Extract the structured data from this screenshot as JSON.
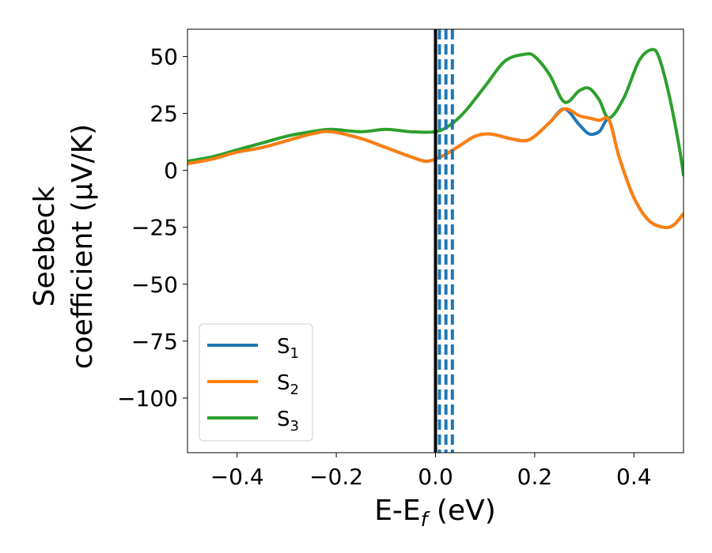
{
  "chart_data": {
    "type": "line",
    "xlabel": "E-E",
    "xlabel_sub": "f",
    "xlabel_unit": " (eV)",
    "ylabel_line1": "Seebeck",
    "ylabel_line2": "coefficient  (μV/K)",
    "xlim": [
      -0.5,
      0.5
    ],
    "ylim": [
      -124,
      62
    ],
    "xticks": [
      -0.4,
      -0.2,
      0.0,
      0.2,
      0.4
    ],
    "xtick_labels": [
      "−0.4",
      "−0.2",
      "0.0",
      "0.2",
      "0.4"
    ],
    "yticks": [
      50,
      25,
      0,
      -25,
      -50,
      -75,
      -100
    ],
    "ytick_labels": [
      "50",
      "25",
      "0",
      "−25",
      "−50",
      "−75",
      "−100"
    ],
    "grid": false,
    "legend_position": "lower-left",
    "vertical_lines": [
      {
        "x": 0.0,
        "style": "solid",
        "color": "#000000"
      },
      {
        "x": 0.008,
        "style": "dashed",
        "color": "#1f77b4"
      },
      {
        "x": 0.021,
        "style": "dashed",
        "color": "#1f77b4"
      },
      {
        "x": 0.034,
        "style": "dashed",
        "color": "#1f77b4"
      }
    ],
    "series": [
      {
        "name": "S",
        "name_sub": "1",
        "color": "#1f77b4",
        "x": [
          -0.5,
          -0.45,
          -0.4,
          -0.35,
          -0.3,
          -0.25,
          -0.21,
          -0.15,
          -0.1,
          -0.05,
          -0.02,
          0.0,
          0.02,
          0.05,
          0.08,
          0.11,
          0.15,
          0.18,
          0.2,
          0.23,
          0.26,
          0.29,
          0.31,
          0.33,
          0.35,
          0.37,
          0.4,
          0.43,
          0.46,
          0.48,
          0.5
        ],
        "values": [
          3,
          5,
          8,
          10,
          13,
          16,
          17,
          14,
          10,
          6,
          4,
          5,
          7,
          11,
          15,
          16,
          14,
          13,
          15,
          21,
          27,
          20,
          16,
          17,
          22,
          6,
          -12,
          -22,
          -25,
          -24,
          -19
        ]
      },
      {
        "name": "S",
        "name_sub": "2",
        "color": "#ff7f0e",
        "x": [
          -0.5,
          -0.45,
          -0.4,
          -0.35,
          -0.3,
          -0.25,
          -0.21,
          -0.15,
          -0.1,
          -0.05,
          -0.02,
          0.0,
          0.02,
          0.05,
          0.08,
          0.11,
          0.15,
          0.18,
          0.2,
          0.23,
          0.26,
          0.29,
          0.31,
          0.33,
          0.35,
          0.37,
          0.4,
          0.43,
          0.46,
          0.48,
          0.5
        ],
        "values": [
          3,
          5,
          8,
          10,
          13,
          16,
          17,
          14,
          10,
          6,
          4,
          5,
          7,
          11,
          15,
          16,
          14,
          13,
          15,
          21,
          27,
          24,
          23,
          22,
          22,
          6,
          -12,
          -22,
          -25,
          -24,
          -19
        ]
      },
      {
        "name": "S",
        "name_sub": "3",
        "color": "#2ca02c",
        "x": [
          -0.5,
          -0.45,
          -0.4,
          -0.35,
          -0.3,
          -0.25,
          -0.21,
          -0.15,
          -0.1,
          -0.05,
          0.0,
          0.03,
          0.06,
          0.1,
          0.14,
          0.18,
          0.2,
          0.23,
          0.26,
          0.29,
          0.31,
          0.33,
          0.35,
          0.38,
          0.41,
          0.435,
          0.45,
          0.47,
          0.49,
          0.5
        ],
        "values": [
          4,
          6,
          9,
          12,
          15,
          17,
          18,
          17,
          18,
          17,
          17,
          20,
          26,
          37,
          48,
          51,
          50,
          42,
          30,
          35,
          36,
          31,
          23,
          32,
          48,
          53,
          50,
          34,
          12,
          -2
        ]
      }
    ]
  }
}
